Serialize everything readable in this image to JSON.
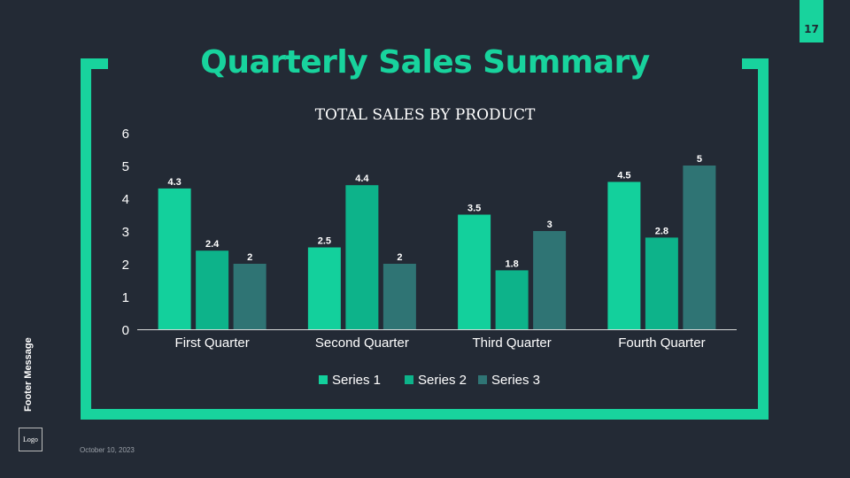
{
  "page_number": "17",
  "title": "Quarterly Sales Summary",
  "footer_message": "Footer Message",
  "logo": "Logo",
  "date": "October 10, 2023",
  "colors": {
    "accent": "#18d39d",
    "series": [
      "#13d09c",
      "#0db38a",
      "#2f7474"
    ]
  },
  "chart_data": {
    "type": "bar",
    "title": "TOTAL SALES BY PRODUCT",
    "categories": [
      "First Quarter",
      "Second Quarter",
      "Third Quarter",
      "Fourth Quarter"
    ],
    "series": [
      {
        "name": "Series 1",
        "values": [
          4.3,
          2.5,
          3.5,
          4.5
        ]
      },
      {
        "name": "Series 2",
        "values": [
          2.4,
          4.4,
          1.8,
          2.8
        ]
      },
      {
        "name": "Series 3",
        "values": [
          2,
          2,
          3,
          5
        ]
      }
    ],
    "ylim": [
      0,
      6
    ],
    "yticks": [
      0,
      1,
      2,
      3,
      4,
      5,
      6
    ],
    "grid": false,
    "legend": "bottom",
    "xlabel": "",
    "ylabel": ""
  }
}
